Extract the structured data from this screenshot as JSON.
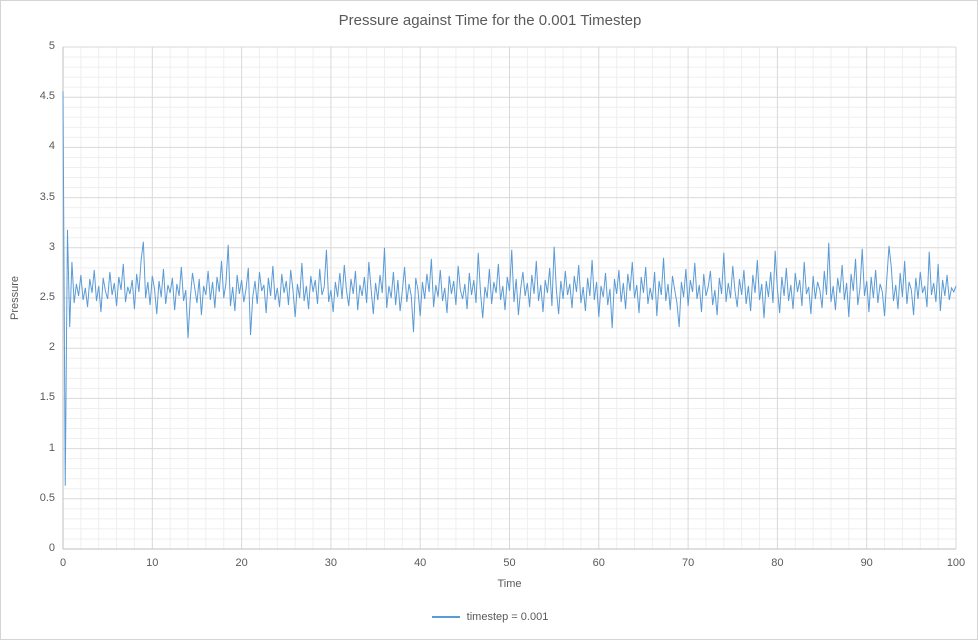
{
  "window": {
    "background": "#ffffff",
    "border_color": "#d4d4d4"
  },
  "chart": {
    "title": "Pressure against Time for the 0.001 Timestep",
    "x_axis": {
      "label": "Time",
      "min": 0,
      "max": 100,
      "major_step": 10,
      "minor_step": 2,
      "tick_labels": [
        "0",
        "10",
        "20",
        "30",
        "40",
        "50",
        "60",
        "70",
        "80",
        "90",
        "100"
      ]
    },
    "y_axis": {
      "label": "Pressure",
      "min": 0,
      "max": 5,
      "major_step": 0.5,
      "minor_step": 0.1,
      "tick_labels": [
        "0",
        "0.5",
        "1",
        "1.5",
        "2",
        "2.5",
        "3",
        "3.5",
        "4",
        "4.5",
        "5"
      ]
    },
    "legend": {
      "label": "timestep = 0.001"
    },
    "colors": {
      "series": "#5b9bd5",
      "major_grid": "#d9d9d9",
      "minor_grid": "#efefef",
      "axis": "#bfbfbf",
      "text": "#595959"
    }
  },
  "chart_data": {
    "type": "line",
    "title": "Pressure against Time for the 0.001 Timestep",
    "xlabel": "Time",
    "ylabel": "Pressure",
    "xlim": [
      0,
      100
    ],
    "ylim": [
      0,
      5
    ],
    "grid": {
      "major": true,
      "minor": true
    },
    "legend_position": "bottom",
    "series": [
      {
        "name": "timestep = 0.001",
        "color": "#5b9bd5",
        "x_start": 0,
        "x_step": 0.25,
        "y": [
          4.56,
          0.63,
          3.18,
          2.21,
          2.86,
          2.45,
          2.64,
          2.52,
          2.73,
          2.48,
          2.6,
          2.41,
          2.69,
          2.55,
          2.78,
          2.47,
          2.62,
          2.36,
          2.7,
          2.57,
          2.49,
          2.76,
          2.53,
          2.65,
          2.42,
          2.71,
          2.58,
          2.84,
          2.46,
          2.61,
          2.54,
          2.68,
          2.39,
          2.74,
          2.56,
          2.88,
          3.06,
          2.5,
          2.66,
          2.43,
          2.72,
          2.59,
          2.34,
          2.67,
          2.51,
          2.79,
          2.44,
          2.63,
          2.55,
          2.7,
          2.38,
          2.64,
          2.52,
          2.81,
          2.47,
          2.58,
          2.1,
          2.49,
          2.75,
          2.6,
          2.45,
          2.69,
          2.33,
          2.62,
          2.53,
          2.77,
          2.48,
          2.66,
          2.4,
          2.71,
          2.56,
          2.87,
          2.5,
          2.65,
          3.03,
          2.42,
          2.61,
          2.37,
          2.73,
          2.54,
          2.68,
          2.46,
          2.59,
          2.8,
          2.13,
          2.51,
          2.67,
          2.44,
          2.76,
          2.57,
          2.63,
          2.35,
          2.7,
          2.52,
          2.82,
          2.48,
          2.6,
          2.41,
          2.74,
          2.55,
          2.67,
          2.43,
          2.78,
          2.58,
          2.31,
          2.64,
          2.5,
          2.85,
          2.47,
          2.62,
          2.39,
          2.72,
          2.56,
          2.68,
          2.44,
          2.79,
          2.53,
          2.61,
          2.98,
          2.46,
          2.58,
          2.36,
          2.66,
          2.51,
          2.75,
          2.49,
          2.83,
          2.57,
          2.42,
          2.69,
          2.54,
          2.77,
          2.38,
          2.63,
          2.52,
          2.71,
          2.45,
          2.86,
          2.59,
          2.34,
          2.65,
          2.48,
          2.73,
          2.55,
          3.0,
          2.4,
          2.62,
          2.5,
          2.76,
          2.43,
          2.68,
          2.37,
          2.57,
          2.81,
          2.46,
          2.64,
          2.52,
          2.16,
          2.7,
          2.58,
          2.32,
          2.66,
          2.49,
          2.74,
          2.56,
          2.89,
          2.41,
          2.63,
          2.51,
          2.78,
          2.47,
          2.6,
          2.35,
          2.72,
          2.54,
          2.67,
          2.43,
          2.82,
          2.58,
          2.49,
          2.64,
          2.39,
          2.75,
          2.53,
          2.68,
          2.45,
          2.95,
          2.56,
          2.3,
          2.61,
          2.5,
          2.79,
          2.44,
          2.66,
          2.55,
          2.84,
          2.48,
          2.62,
          2.38,
          2.71,
          2.57,
          2.98,
          2.46,
          2.69,
          2.33,
          2.59,
          2.76,
          2.52,
          2.65,
          2.41,
          2.73,
          2.54,
          2.87,
          2.47,
          2.63,
          2.36,
          2.68,
          2.55,
          2.8,
          2.42,
          3.01,
          2.58,
          2.34,
          2.67,
          2.49,
          2.77,
          2.53,
          2.64,
          2.4,
          2.72,
          2.56,
          2.83,
          2.45,
          2.61,
          2.37,
          2.7,
          2.52,
          2.88,
          2.48,
          2.66,
          2.31,
          2.62,
          2.51,
          2.75,
          2.43,
          2.59,
          2.2,
          2.69,
          2.54,
          2.78,
          2.46,
          2.65,
          2.39,
          2.74,
          2.57,
          2.86,
          2.5,
          2.63,
          2.35,
          2.71,
          2.55,
          2.81,
          2.44,
          2.6,
          2.48,
          2.76,
          2.32,
          2.67,
          2.53,
          2.9,
          2.47,
          2.64,
          2.38,
          2.72,
          2.58,
          2.45,
          2.21,
          2.66,
          2.51,
          2.79,
          2.42,
          2.68,
          2.56,
          2.85,
          2.49,
          2.63,
          2.36,
          2.74,
          2.52,
          2.61,
          2.77,
          2.43,
          2.58,
          2.33,
          2.7,
          2.54,
          2.95,
          2.46,
          2.65,
          2.5,
          2.82,
          2.57,
          2.41,
          2.69,
          2.53,
          2.78,
          2.44,
          2.62,
          2.37,
          2.73,
          2.55,
          2.88,
          2.48,
          2.64,
          2.3,
          2.67,
          2.51,
          2.76,
          2.45,
          2.97,
          2.59,
          2.35,
          2.71,
          2.52,
          2.8,
          2.47,
          2.63,
          2.39,
          2.75,
          2.56,
          2.68,
          2.42,
          2.86,
          2.54,
          2.61,
          2.34,
          2.72,
          2.49,
          2.66,
          2.58,
          2.4,
          2.77,
          2.53,
          3.05,
          2.46,
          2.62,
          2.38,
          2.7,
          2.55,
          2.83,
          2.48,
          2.65,
          2.31,
          2.74,
          2.57,
          2.89,
          2.43,
          2.6,
          2.99,
          2.52,
          2.67,
          2.36,
          2.71,
          2.5,
          2.78,
          2.45,
          2.64,
          2.56,
          2.32,
          2.69,
          3.02,
          2.81,
          2.47,
          2.63,
          2.39,
          2.75,
          2.51,
          2.87,
          2.44,
          2.66,
          2.58,
          2.33,
          2.7,
          2.49,
          2.76,
          2.55,
          2.62,
          2.41,
          2.96,
          2.53,
          2.65,
          2.46,
          2.84,
          2.37,
          2.68,
          2.52,
          2.73,
          2.48,
          2.6,
          2.56,
          2.62
        ]
      }
    ]
  }
}
